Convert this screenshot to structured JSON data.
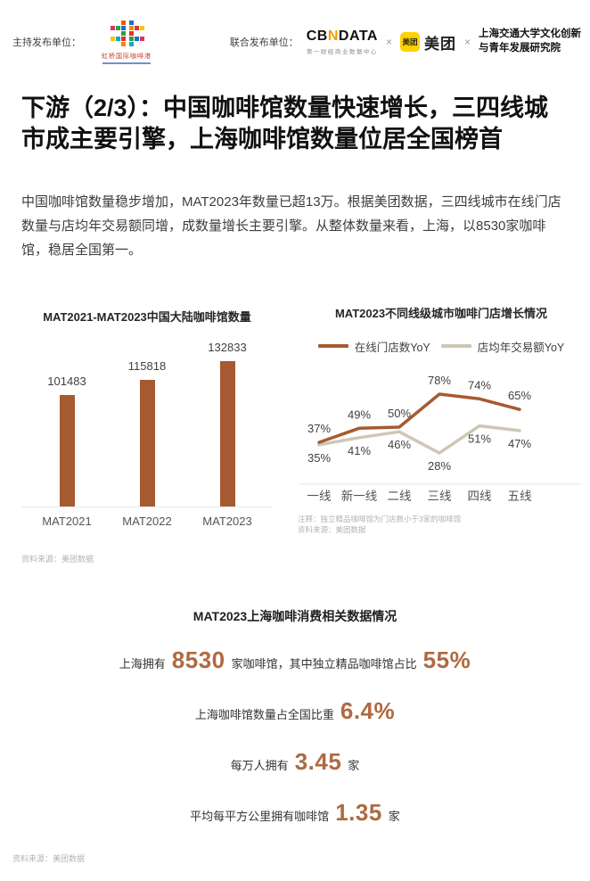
{
  "header": {
    "host_label": "主持发布单位：",
    "host_logo_text": "虹桥国际咖啡港",
    "joint_label": "联合发布单位：",
    "cbndata_prefix": "CB",
    "cbndata_n": "N",
    "cbndata_suffix": "DATA",
    "cbndata_subtitle": "第一财经商业数据中心",
    "separator": "×",
    "meituan_badge": "美团",
    "meituan_text": "美团",
    "institute_line1": "上海交通大学文化创新",
    "institute_line2": "与青年发展研究院"
  },
  "title": "下游（2/3）：中国咖啡馆数量快速增长，三四线城市成主要引擎，上海咖啡馆数量位居全国榜首",
  "paragraph": "中国咖啡馆数量稳步增加，MAT2023年数量已超13万。根据美团数据，三四线城市在线门店数量与店均年交易额同增，成数量增长主要引擎。从整体数量来看，上海，以8530家咖啡馆，稳居全国第一。",
  "chart_data": [
    {
      "type": "bar",
      "title": "MAT2021-MAT2023中国大陆咖啡馆数量",
      "categories": [
        "MAT2021",
        "MAT2022",
        "MAT2023"
      ],
      "values": [
        101483,
        115818,
        132833
      ],
      "bar_color": "#A65A31",
      "grid": false,
      "source": "资料来源：美团数据"
    },
    {
      "type": "line",
      "title": "MAT2023不同线级城市咖啡门店增长情况",
      "categories": [
        "一线",
        "新一线",
        "二线",
        "三线",
        "四线",
        "五线"
      ],
      "series": [
        {
          "name": "在线门店数YoY",
          "color": "#A65A31",
          "values": [
            37,
            49,
            50,
            78,
            74,
            65
          ]
        },
        {
          "name": "店均年交易额YoY",
          "color": "#CFC6B5",
          "values": [
            35,
            41,
            46,
            28,
            51,
            47
          ]
        }
      ],
      "unit": "%",
      "legend_position": "top",
      "grid": false,
      "note": "注释：独立精品咖啡馆为门店数小于3家的咖啡馆",
      "source": "资料来源：美团数据"
    }
  ],
  "stats": {
    "title": "MAT2023上海咖啡消费相关数据情况",
    "accent_color": "#AE6A42",
    "rows": [
      [
        {
          "text": "上海拥有",
          "em": false
        },
        {
          "text": "8530",
          "em": true
        },
        {
          "text": "家咖啡馆，其中独立精品咖啡馆占比",
          "em": false
        },
        {
          "text": "55%",
          "em": true
        }
      ],
      [
        {
          "text": "上海咖啡馆数量占全国比重",
          "em": false
        },
        {
          "text": "6.4%",
          "em": true
        }
      ],
      [
        {
          "text": "每万人拥有",
          "em": false
        },
        {
          "text": "3.45",
          "em": true
        },
        {
          "text": "家",
          "em": false
        }
      ],
      [
        {
          "text": "平均每平方公里拥有咖啡馆",
          "em": false
        },
        {
          "text": "1.35",
          "em": true
        },
        {
          "text": "家",
          "em": false
        }
      ]
    ]
  },
  "footer_source": "资料来源：美团数据"
}
